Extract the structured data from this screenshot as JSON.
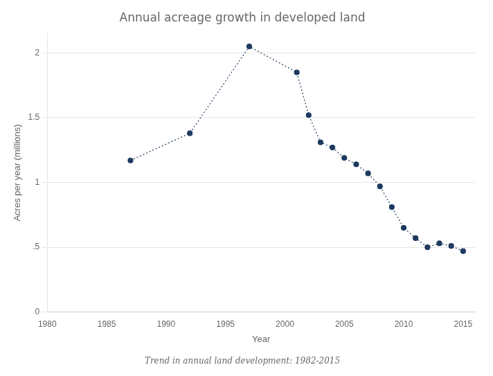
{
  "chart_data": {
    "type": "line",
    "title": "Annual acreage growth in developed land",
    "caption": "Trend in annual land development: 1982-2015",
    "xlabel": "Year",
    "ylabel": "Acres per year (millions)",
    "x": [
      1987,
      1992,
      1997,
      2001,
      2002,
      2003,
      2004,
      2005,
      2006,
      2007,
      2008,
      2009,
      2010,
      2011,
      2012,
      2013,
      2014,
      2015
    ],
    "values": [
      1.17,
      1.38,
      2.05,
      1.85,
      1.52,
      1.31,
      1.27,
      1.19,
      1.14,
      1.07,
      0.97,
      0.81,
      0.65,
      0.57,
      0.5,
      0.53,
      0.51,
      0.47
    ],
    "color": "#1e3a5f",
    "marker": "circle",
    "line_style": "dotted",
    "xlim": [
      1980,
      2016
    ],
    "xticks": [
      1980,
      1985,
      1990,
      1995,
      2000,
      2005,
      2010,
      2015
    ],
    "ylim": [
      0,
      2.15
    ],
    "yticks": [
      0,
      {
        "value": 0.5,
        "label": ".5"
      },
      1,
      1.5,
      2
    ],
    "grid": "y",
    "legend": false
  }
}
